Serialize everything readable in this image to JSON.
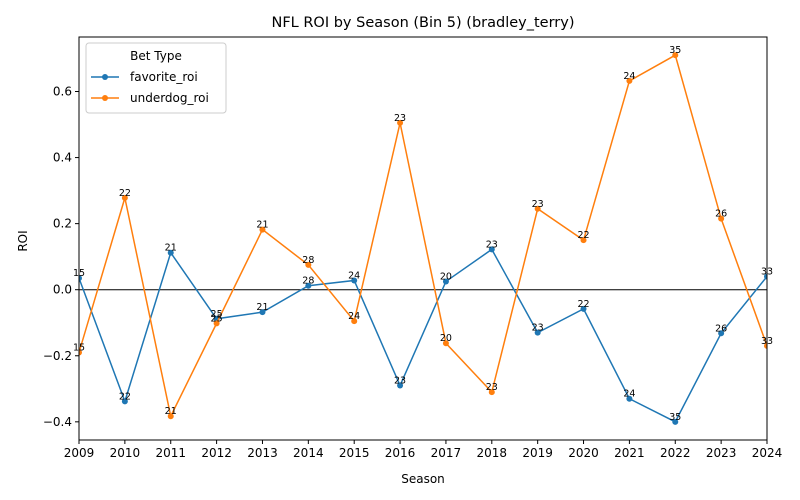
{
  "chart_data": {
    "type": "line",
    "title": "NFL ROI by Season (Bin 5) (bradley_terry)",
    "xlabel": "Season",
    "ylabel": "ROI",
    "x": [
      2009,
      2010,
      2011,
      2012,
      2013,
      2014,
      2015,
      2016,
      2017,
      2018,
      2019,
      2020,
      2021,
      2022,
      2023,
      2024
    ],
    "xlim": [
      2009,
      2024
    ],
    "ylim": [
      -0.455,
      0.765
    ],
    "yticks": [
      -0.4,
      -0.2,
      0.0,
      0.2,
      0.4,
      0.6
    ],
    "ytick_labels": [
      "−0.4",
      "−0.2",
      "0.0",
      "0.2",
      "0.4",
      "0.6"
    ],
    "xtick_labels": [
      "2009",
      "2010",
      "2011",
      "2012",
      "2013",
      "2014",
      "2015",
      "2016",
      "2017",
      "2018",
      "2019",
      "2020",
      "2021",
      "2022",
      "2023",
      "2024"
    ],
    "grid": false,
    "reference_line": 0,
    "legend": {
      "title": "Bet Type",
      "placement": "top-left"
    },
    "series": [
      {
        "name": "favorite_roi",
        "color": "#1f77b4",
        "values": [
          0.035,
          -0.338,
          0.112,
          -0.088,
          -0.068,
          0.012,
          0.028,
          -0.29,
          0.025,
          0.122,
          -0.13,
          -0.058,
          -0.33,
          -0.4,
          -0.132,
          0.04
        ],
        "labels": [
          "15",
          "22",
          "21",
          "25",
          "21",
          "28",
          "24",
          "23",
          "20",
          "23",
          "23",
          "22",
          "24",
          "35",
          "26",
          "33"
        ]
      },
      {
        "name": "underdog_roi",
        "color": "#ff7f0e",
        "values": [
          -0.19,
          0.278,
          -0.383,
          -0.102,
          0.182,
          0.075,
          -0.095,
          0.505,
          -0.162,
          -0.31,
          0.245,
          0.15,
          0.632,
          0.71,
          0.215,
          -0.17
        ],
        "labels": [
          "15",
          "22",
          "21",
          "25",
          "21",
          "28",
          "24",
          "23",
          "20",
          "23",
          "23",
          "22",
          "24",
          "35",
          "26",
          "33"
        ]
      }
    ]
  }
}
